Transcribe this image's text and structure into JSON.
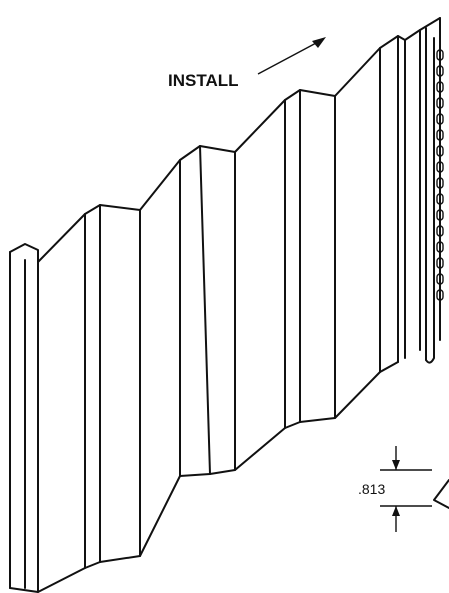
{
  "labels": {
    "install": "INSTALL",
    "dimension": ".813"
  }
}
